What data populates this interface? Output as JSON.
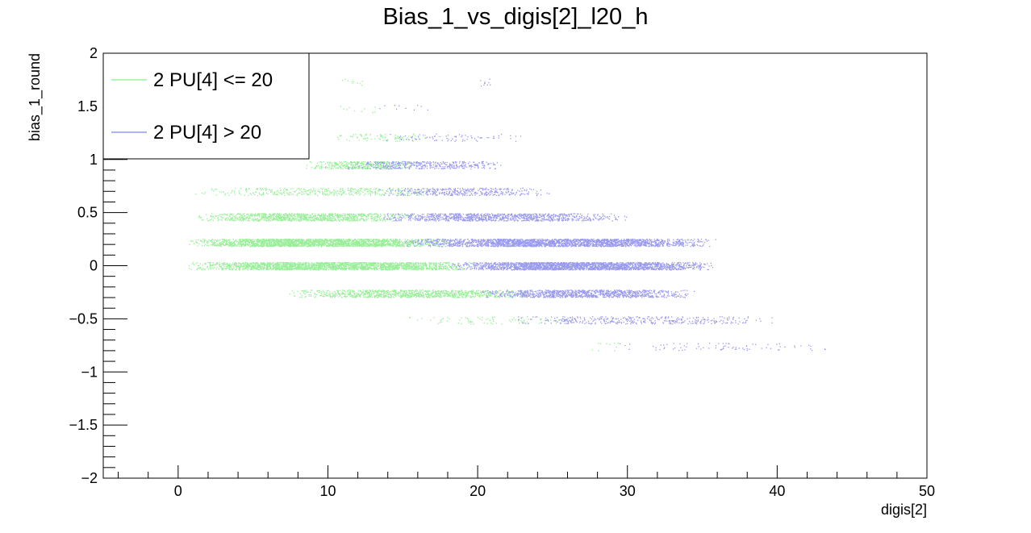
{
  "chart_data": {
    "type": "scatter",
    "title": "Bias_1_vs_digis[2]_l20_h",
    "xlabel": "digis[2]",
    "ylabel": "bias_1_round",
    "xlim": [
      -5,
      50
    ],
    "ylim": [
      -2,
      2
    ],
    "x_ticks": [
      0,
      10,
      20,
      30,
      40,
      50
    ],
    "y_ticks": [
      -2,
      -1.5,
      -1,
      -0.5,
      0,
      0.5,
      1,
      1.5,
      2
    ],
    "x_tick_labels": [
      "0",
      "10",
      "20",
      "30",
      "40",
      "50"
    ],
    "y_tick_labels": [
      "−2",
      "−1.5",
      "−1",
      "−0.5",
      "0",
      "0.5",
      "1",
      "1.5",
      "2"
    ],
    "grid": false,
    "legend": {
      "placement": "top-left",
      "entries": [
        {
          "label": "2 PU[4] <= 20",
          "color": "#66ee66"
        },
        {
          "label": "2 PU[4] > 20",
          "color": "#6666ee"
        }
      ]
    },
    "series": [
      {
        "name": "2 PU[4] <= 20",
        "color": "#99ee99",
        "bands": [
          {
            "y": 1.73,
            "x_range": [
              10.5,
              12.5
            ],
            "density": "very-sparse"
          },
          {
            "y": 1.48,
            "x_range": [
              9.5,
              14.0
            ],
            "density": "very-sparse"
          },
          {
            "y": 1.21,
            "x_range": [
              10.0,
              17.0
            ],
            "density": "sparse"
          },
          {
            "y": 0.95,
            "x_range": [
              8.5,
              16.0
            ],
            "density": "medium"
          },
          {
            "y": 0.7,
            "x_range": [
              1.0,
              18.0
            ],
            "density": "medium"
          },
          {
            "y": 0.46,
            "x_range": [
              1.0,
              16.0
            ],
            "density": "dense"
          },
          {
            "y": 0.22,
            "x_range": [
              0.5,
              18.5
            ],
            "density": "very-dense"
          },
          {
            "y": 0.0,
            "x_range": [
              0.5,
              20.0
            ],
            "density": "very-dense"
          },
          {
            "y": -0.26,
            "x_range": [
              7.0,
              24.0
            ],
            "density": "dense"
          },
          {
            "y": -0.51,
            "x_range": [
              15.0,
              26.5
            ],
            "density": "sparse"
          },
          {
            "y": -0.76,
            "x_range": [
              27.5,
              30.0
            ],
            "density": "very-sparse"
          }
        ]
      },
      {
        "name": "2 PU[4] > 20",
        "color": "#9999ee",
        "bands": [
          {
            "y": 1.73,
            "x_range": [
              20.0,
              21.0
            ],
            "density": "very-sparse"
          },
          {
            "y": 1.48,
            "x_range": [
              13.0,
              17.0
            ],
            "density": "very-sparse"
          },
          {
            "y": 1.21,
            "x_range": [
              13.0,
              23.0
            ],
            "density": "sparse"
          },
          {
            "y": 0.95,
            "x_range": [
              11.0,
              22.0
            ],
            "density": "medium"
          },
          {
            "y": 0.7,
            "x_range": [
              13.0,
              25.0
            ],
            "density": "medium"
          },
          {
            "y": 0.46,
            "x_range": [
              13.0,
              30.0
            ],
            "density": "dense"
          },
          {
            "y": 0.22,
            "x_range": [
              15.0,
              36.0
            ],
            "density": "very-dense"
          },
          {
            "y": 0.0,
            "x_range": [
              18.0,
              36.0
            ],
            "density": "very-dense"
          },
          {
            "y": -0.26,
            "x_range": [
              20.0,
              34.5
            ],
            "density": "dense"
          },
          {
            "y": -0.51,
            "x_range": [
              22.0,
              40.0
            ],
            "density": "medium"
          },
          {
            "y": -0.76,
            "x_range": [
              28.0,
              44.0
            ],
            "density": "sparse"
          }
        ]
      }
    ]
  }
}
